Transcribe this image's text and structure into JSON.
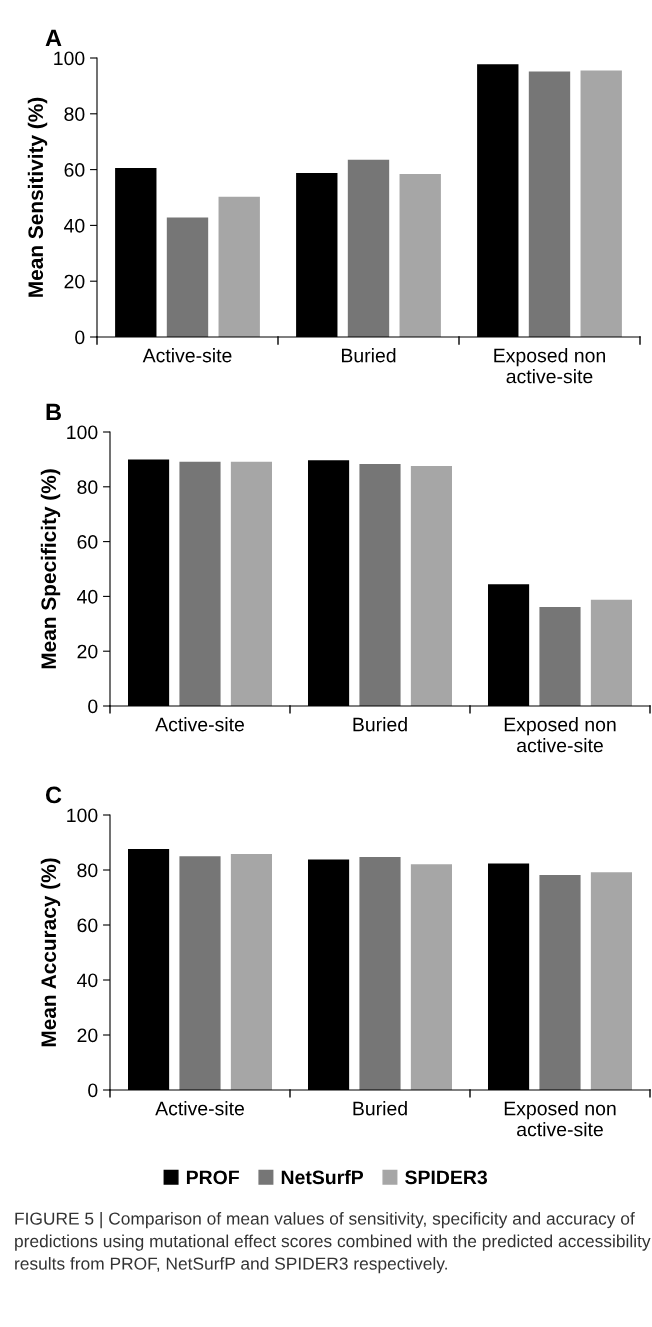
{
  "chart_data": [
    {
      "type": "bar",
      "title": "A",
      "ylabel": "Mean Sensitivity (%)",
      "categories": [
        "Active-site",
        "Buried",
        "Exposed non\nactive-site"
      ],
      "ylim": [
        0,
        100
      ],
      "yticks": [
        0,
        20,
        40,
        60,
        80,
        100
      ],
      "grid": false,
      "legend": false,
      "series": [
        {
          "color": "#000000",
          "values": [
            60.6,
            58.8,
            97.8
          ]
        },
        {
          "color": "#767676",
          "values": [
            42.8,
            63.5,
            95.2
          ]
        },
        {
          "color": "#a6a6a6",
          "values": [
            50.3,
            58.4,
            95.5
          ]
        }
      ]
    },
    {
      "type": "bar",
      "title": "B",
      "ylabel": "Mean Specificity (%)",
      "categories": [
        "Active-site",
        "Buried",
        "Exposed non\nactive-site"
      ],
      "ylim": [
        0,
        100
      ],
      "yticks": [
        0,
        20,
        40,
        60,
        80,
        100
      ],
      "grid": false,
      "legend": false,
      "series": [
        {
          "color": "#000000",
          "values": [
            90.0,
            89.7,
            44.4
          ]
        },
        {
          "color": "#767676",
          "values": [
            89.1,
            88.3,
            36.1
          ]
        },
        {
          "color": "#a6a6a6",
          "values": [
            89.1,
            87.6,
            38.8
          ]
        }
      ]
    },
    {
      "type": "bar",
      "title": "C",
      "ylabel": "Mean Accuracy (%)",
      "categories": [
        "Active-site",
        "Buried",
        "Exposed non\nactive-site"
      ],
      "ylim": [
        0,
        100
      ],
      "yticks": [
        0,
        20,
        40,
        60,
        80,
        100
      ],
      "grid": false,
      "legend": "bottom",
      "annotations": [
        "FIGURE 5 | Comparison of mean values of sensitivity, specificity and accuracy of predictions using mutational effect scores combined with the predicted accessibility results from PROF, NetSurfP and SPIDER3 respectively."
      ],
      "series": [
        {
          "name": "PROF",
          "color": "#000000",
          "values": [
            87.6,
            83.8,
            82.4
          ]
        },
        {
          "name": "NetSurfP",
          "color": "#767676",
          "values": [
            85.0,
            84.7,
            78.2
          ]
        },
        {
          "name": "SPIDER3",
          "color": "#a6a6a6",
          "values": [
            85.8,
            82.1,
            79.2
          ]
        }
      ]
    }
  ]
}
